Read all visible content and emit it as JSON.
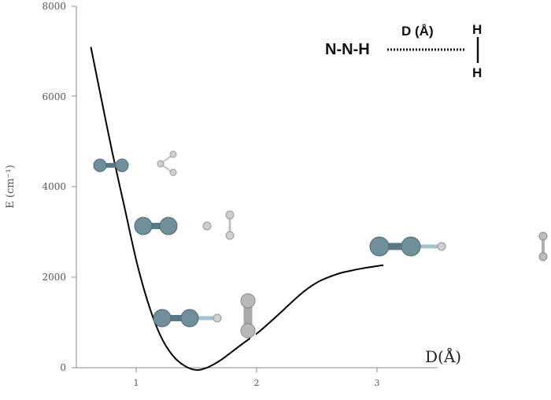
{
  "chart_data": {
    "type": "line",
    "title": "",
    "xlabel": "D(Å)",
    "ylabel": "E (cm⁻¹)",
    "x_ticks": [
      "1",
      "2",
      "3"
    ],
    "y_ticks": [
      "0",
      "2000",
      "4000",
      "6000",
      "8000"
    ],
    "xlim": [
      0.5,
      3.5
    ],
    "ylim": [
      0,
      8000
    ],
    "grid": false,
    "series": [
      {
        "x": [
          0.62,
          0.7,
          0.8,
          0.9,
          1.0,
          1.1,
          1.2,
          1.3,
          1.4,
          1.5,
          1.6,
          1.7,
          1.8,
          1.9,
          2.0,
          2.1,
          2.2,
          2.3,
          2.4,
          2.5,
          2.6,
          2.7,
          2.8,
          2.9,
          3.0,
          3.05
        ],
        "y": [
          7100,
          6050,
          4750,
          3550,
          2350,
          1400,
          700,
          270,
          40,
          -50,
          20,
          170,
          370,
          570,
          760,
          990,
          1230,
          1480,
          1710,
          1890,
          2010,
          2100,
          2160,
          2210,
          2250,
          2270
        ]
      }
    ],
    "inset": {
      "left": "N-N-H",
      "top_label": "D (Å)",
      "right_top": "H",
      "right_bottom": "H"
    }
  }
}
